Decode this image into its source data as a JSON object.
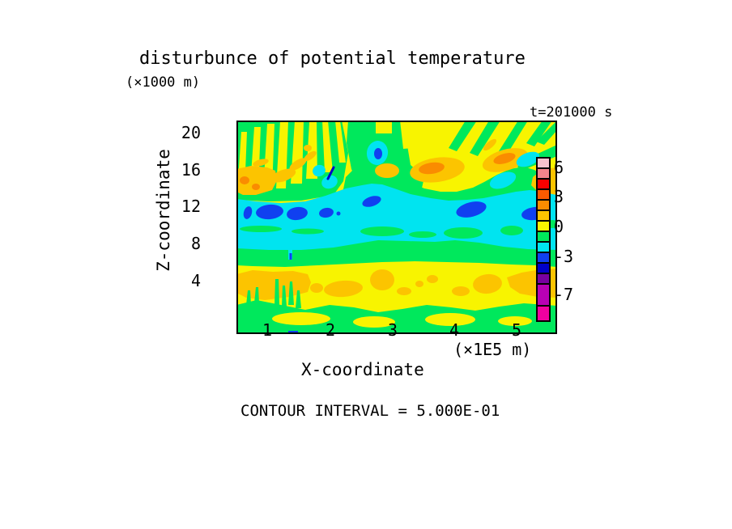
{
  "title": "disturbunce of potential temperature",
  "time_label": "t=201000 s",
  "footer": "CONTOUR INTERVAL = 5.000E-01",
  "x_axis": {
    "label": "X-coordinate",
    "unit": "(×1E5 m)",
    "ticks": [
      "1",
      "2",
      "3",
      "4",
      "5"
    ]
  },
  "y_axis": {
    "label": "Z-coordinate",
    "unit": "(×1000 m)",
    "ticks": [
      "20",
      "16",
      "12",
      "8",
      "4"
    ]
  },
  "colorbar": {
    "labels": [
      "6",
      "3",
      "0",
      "-3",
      "-7"
    ],
    "segments": [
      {
        "color": "#f7c3cd",
        "h": 13
      },
      {
        "color": "#f6848c",
        "h": 13
      },
      {
        "color": "#fa0000",
        "h": 13
      },
      {
        "color": "#fa5a00",
        "h": 13
      },
      {
        "color": "#fa8c00",
        "h": 13
      },
      {
        "color": "#fcc400",
        "h": 13
      },
      {
        "color": "#f8f400",
        "h": 13
      },
      {
        "color": "#00e85c",
        "h": 13
      },
      {
        "color": "#00e4f0",
        "h": 13
      },
      {
        "color": "#1040f0",
        "h": 13
      },
      {
        "color": "#0000c8",
        "h": 13
      },
      {
        "color": "#7800a0",
        "h": 13
      },
      {
        "color": "#b800b4",
        "h": 27
      },
      {
        "color": "#f000a0",
        "h": 19
      }
    ]
  },
  "chart_data": {
    "type": "heatmap",
    "subtype": "filled_contour",
    "title": "disturbunce of potential temperature",
    "time": "t=201000 s",
    "contour_interval": 0.5,
    "contour_interval_label": "CONTOUR INTERVAL = 5.000E-01",
    "xlabel": "X-coordinate",
    "x_unit": "×1E5 m",
    "x_ticks": [
      1,
      2,
      3,
      4,
      5
    ],
    "x_range": [
      0,
      5.15
    ],
    "ylabel": "Z-coordinate",
    "y_unit": "×1000 m",
    "y_ticks": [
      20,
      16,
      12,
      8,
      4
    ],
    "y_range": [
      0,
      23
    ],
    "legend_position": "right",
    "grid": false,
    "colorbar_labeled_levels": [
      6,
      3,
      0,
      -3,
      -7
    ],
    "colorbar_level_boundaries": [
      7,
      6,
      5,
      4,
      3,
      2,
      1,
      0,
      -1,
      -2,
      -3,
      -4,
      -5,
      -7,
      -9
    ],
    "colorbar_colors_top_to_bottom": [
      "#f7c3cd",
      "#f6848c",
      "#fa0000",
      "#fa5a00",
      "#fa8c00",
      "#fcc400",
      "#f8f400",
      "#00e85c",
      "#00e4f0",
      "#1040f0",
      "#0000c8",
      "#7800a0",
      "#b800b4",
      "#f000a0"
    ],
    "field_colors": {
      "yellow": "#f8f400",
      "green": "#00e85c",
      "cyan": "#00e4f0",
      "blue": "#1040f0",
      "navy": "#0000c8",
      "gold": "#fcc400",
      "orange": "#fa8c00"
    },
    "features": [
      "Upper-left (z 16-23, x 0-1.2): fan of alternating vertical yellow/green streaks with gold-orange streaks near z 14-16",
      "Top middle-right (z 17-23): yellow with green diagonal streaks; gold blobs with orange cores near x 2.8-3.7 and x 3.9-4.7 at z 17-19",
      "Small cyan pockets with blue/navy cores near x 2.2 z 19 and x 4.0-4.8 z 17-19",
      "Cyan band of negative anomaly across z 9-14 containing a row of blue (approx -3) blobs near z 12-13 at x 0.1-1.7, 2.0-2.3, 3.5-4.0, 4.6-5.0",
      "Green band (approx 0 to 1) across z 7.5-9.5",
      "Yellow band z 3.5-7.5 with a row of gold (1.5-2.5) blobs near z 4-6 across the full width",
      "Green band along the bottom z 0-2.5 with yellow patches and a tiny blue speck at x 0.9 near z 0"
    ]
  }
}
